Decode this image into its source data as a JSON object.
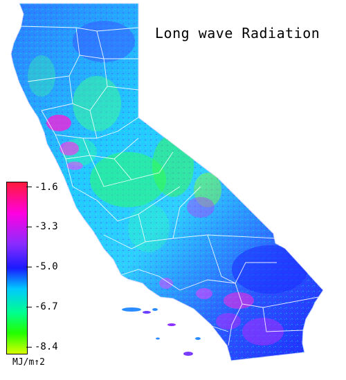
{
  "title": "Long wave Radiation",
  "legend": {
    "ticks": [
      "-1.6",
      "-3.3",
      "-5.0",
      "-6.7",
      "-8.4"
    ],
    "units": "MJ/m↑2",
    "colors": [
      "#ff1a3a",
      "#ff00e0",
      "#8a2cff",
      "#1a1aff",
      "#00c8ff",
      "#00ff90",
      "#22ff00",
      "#d8ff00"
    ]
  }
}
